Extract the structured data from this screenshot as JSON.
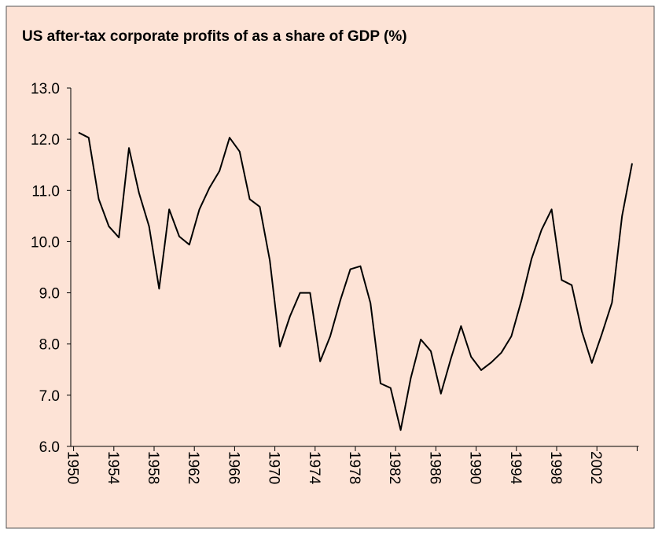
{
  "chart_data": {
    "type": "line",
    "title": "US after-tax corporate profits of as a share of GDP (%)",
    "categories": [
      "1950",
      null,
      null,
      null,
      "1954",
      null,
      null,
      null,
      "1958",
      null,
      null,
      null,
      "1962",
      null,
      null,
      null,
      "1966",
      null,
      null,
      null,
      "1970",
      null,
      null,
      null,
      "1974",
      null,
      null,
      null,
      "1978",
      null,
      null,
      null,
      "1982",
      null,
      null,
      null,
      "1986",
      null,
      null,
      null,
      "1990",
      null,
      null,
      null,
      "1994",
      null,
      null,
      null,
      "1998",
      null,
      null,
      null,
      "2002",
      null,
      null,
      null
    ],
    "series": [
      {
        "name": "US after-tax corporate profits",
        "color": "#000000",
        "values": [
          12.13,
          12.03,
          10.83,
          10.3,
          10.08,
          11.83,
          10.95,
          10.3,
          9.08,
          10.63,
          10.1,
          9.94,
          10.63,
          11.05,
          11.38,
          12.03,
          11.76,
          10.83,
          10.68,
          9.63,
          7.95,
          8.54,
          9.0,
          9.0,
          7.66,
          8.15,
          8.85,
          9.46,
          9.52,
          8.8,
          7.23,
          7.14,
          6.32,
          7.33,
          8.09,
          7.86,
          7.03,
          7.72,
          8.35,
          7.75,
          7.49,
          7.64,
          7.83,
          8.15,
          8.85,
          9.66,
          10.23,
          10.63,
          9.25,
          9.15,
          8.25,
          7.63,
          8.2,
          8.81,
          10.5,
          11.53
        ]
      }
    ],
    "ylim": [
      6.0,
      13.0
    ],
    "yticks": [
      {
        "value": 6,
        "label": "6.0"
      },
      {
        "value": 7,
        "label": "7.0"
      },
      {
        "value": 8,
        "label": "8.0"
      },
      {
        "value": 9,
        "label": "9.0"
      },
      {
        "value": 10,
        "label": "10.0"
      },
      {
        "value": 11,
        "label": "11.0"
      },
      {
        "value": 12,
        "label": "12.0"
      },
      {
        "value": 13,
        "label": "13.0"
      }
    ],
    "grid": false
  }
}
